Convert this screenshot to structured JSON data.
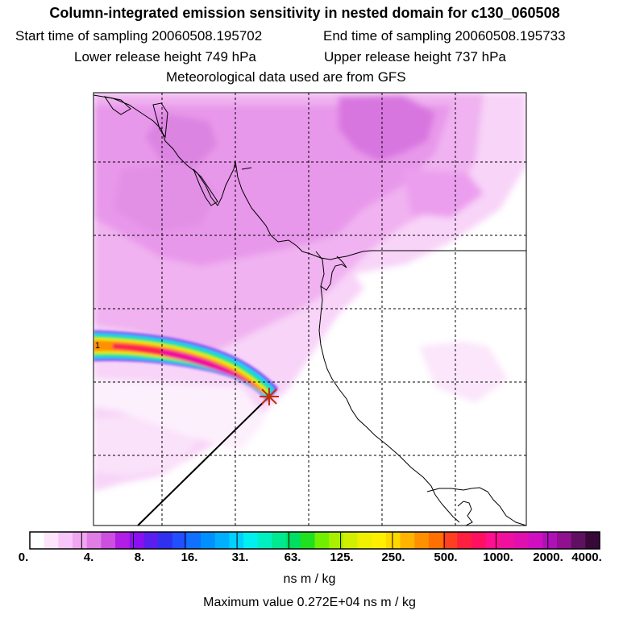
{
  "header": {
    "title": "Column-integrated emission sensitivity in nested domain for c130_060508",
    "start_label": "Start time of sampling 20060508.195702",
    "end_label": "End time of sampling 20060508.195733",
    "lower_label": "Lower release height  749 hPa",
    "upper_label": "Upper release height  737 hPa",
    "met_label": "Meteorological data used are from GFS"
  },
  "colorbar": {
    "labels": [
      "0.",
      "4.",
      "8.",
      "16.",
      "31.",
      "63.",
      "125.",
      "250.",
      "500.",
      "1000.",
      "2000.",
      "4000."
    ],
    "colors": [
      "#ffffff",
      "#fde4fd",
      "#f9c6f9",
      "#f0a6f0",
      "#e07ee6",
      "#cc4fe0",
      "#b11ee6",
      "#8a10f0",
      "#5a1ef0",
      "#3030f0",
      "#2050ff",
      "#1070ff",
      "#0090ff",
      "#00b0ff",
      "#00d0ff",
      "#00f0f0",
      "#00f0c0",
      "#00e890",
      "#00e060",
      "#20e020",
      "#70f000",
      "#a8f000",
      "#d0f000",
      "#f0f000",
      "#fff000",
      "#ffd800",
      "#ffb400",
      "#ff9000",
      "#ff7000",
      "#ff4020",
      "#ff2040",
      "#ff1060",
      "#ff1090",
      "#f010a0",
      "#e010b0",
      "#d010c0",
      "#b010b8",
      "#901090",
      "#601060",
      "#380838"
    ],
    "units": "ns m / kg",
    "max_value": "Maximum value  0.272E+04 ns m / kg"
  }
}
